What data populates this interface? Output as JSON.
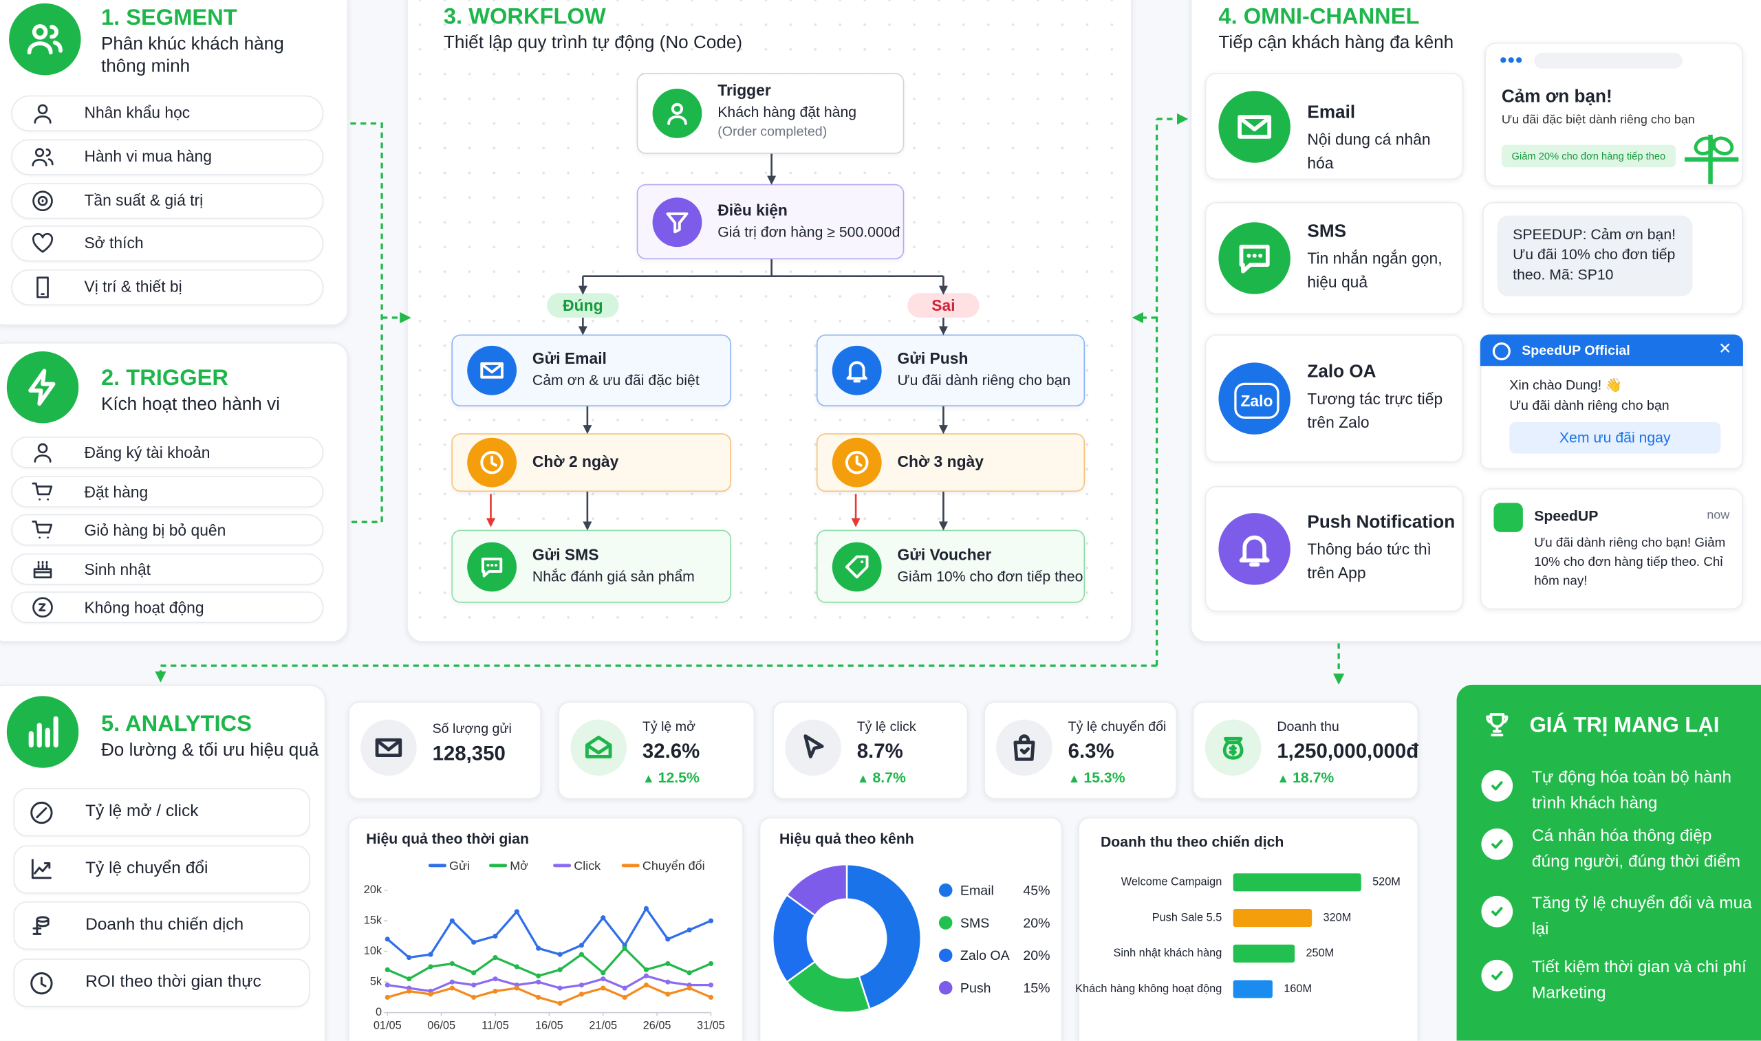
{
  "segment": {
    "heading": "1. SEGMENT",
    "title": "Phân khúc khách hàng thông minh",
    "items": [
      "Nhân khẩu học",
      "Hành vi mua hàng",
      "Tần suất & giá trị",
      "Sở thích",
      "Vị trí & thiết bị"
    ]
  },
  "trigger": {
    "heading": "2. TRIGGER",
    "title": "Kích hoạt theo hành vi",
    "items": [
      "Đăng ký tài khoản",
      "Đặt hàng",
      "Giỏ hàng bị bỏ quên",
      "Sinh nhật",
      "Không hoạt động"
    ]
  },
  "workflow": {
    "heading": "3. WORKFLOW",
    "subtitle": "Thiết lập quy trình tự động (No Code)",
    "trigger": {
      "title": "Trigger",
      "text": "Khách hàng đặt hàng",
      "note": "(Order completed)"
    },
    "condition": {
      "title": "Điều kiện",
      "text": "Giá trị đơn hàng ≥ 500.000đ"
    },
    "branches": [
      {
        "label": "Đúng",
        "steps": [
          {
            "title": "Gửi Email",
            "text": "Cảm ơn & ưu đãi đặc biệt"
          },
          {
            "title": "Chờ 2 ngày"
          },
          {
            "title": "Gửi SMS",
            "text": "Nhắc đánh giá sản phẩm"
          }
        ]
      },
      {
        "label": "Sai",
        "steps": [
          {
            "title": "Gửi Push",
            "text": "Ưu đãi dành riêng cho bạn"
          },
          {
            "title": "Chờ 3 ngày"
          },
          {
            "title": "Gửi Voucher",
            "text": "Giảm 10% cho đơn tiếp theo"
          }
        ]
      }
    ]
  },
  "omni": {
    "heading": "4. OMNI-CHANNEL",
    "subtitle": "Tiếp cận khách hàng đa kênh",
    "channels": [
      {
        "title": "Email",
        "text": "Nội dung cá nhân hóa"
      },
      {
        "title": "SMS",
        "text": "Tin nhắn ngắn gọn, hiệu quả"
      },
      {
        "title": "Zalo OA",
        "text": "Tương tác trực tiếp trên Zalo",
        "icon": "Zalo"
      },
      {
        "title": "Push Notification",
        "text": "Thông báo tức thì trên App"
      }
    ],
    "email_preview": {
      "title": "Cảm ơn bạn!",
      "text": "Ưu đãi đặc biệt dành riêng cho bạn",
      "badge": "Giảm 20% cho đơn hàng tiếp theo"
    },
    "sms_preview": {
      "text": "SPEEDUP: Cảm ơn bạn! Ưu đãi 10% cho đơn tiếp theo. Mã: SP10"
    },
    "zalo_preview": {
      "sender": "SpeedUP Official",
      "greeting": "Xin chào Dung! 👋",
      "text": "Ưu đãi dành riêng cho bạn",
      "button": "Xem ưu đãi ngay"
    },
    "push_preview": {
      "sender": "SpeedUP",
      "time": "now",
      "text": "Ưu đãi dành riêng cho bạn! Giảm 10% cho đơn hàng tiếp theo. Chỉ hôm nay!"
    }
  },
  "analytics": {
    "heading": "5. ANALYTICS",
    "subtitle": "Đo lường & tối ưu hiệu quả",
    "items": [
      "Tỷ lệ mở / click",
      "Tỷ lệ chuyển đổi",
      "Doanh thu chiến dịch",
      "ROI theo thời gian thực"
    ]
  },
  "kpis": [
    {
      "label": "Số lượng gửi",
      "value": "128,350"
    },
    {
      "label": "Tỷ lệ mở",
      "value": "32.6%",
      "change": "12.5%"
    },
    {
      "label": "Tỷ lệ click",
      "value": "8.7%",
      "change": "8.7%"
    },
    {
      "label": "Tỷ lệ chuyển đổi",
      "value": "6.3%",
      "change": "15.3%"
    },
    {
      "label": "Doanh thu",
      "value": "1,250,000,000đ",
      "change": "18.7%"
    }
  ],
  "benefits": {
    "title": "GIÁ TRỊ MANG LẠI",
    "items": [
      "Tự động hóa toàn bộ hành trình khách hàng",
      "Cá nhân hóa thông điệp đúng người, đúng thời điểm",
      "Tăng tỷ lệ chuyển đổi và mua lại",
      "Tiết kiệm thời gian và chi phí Marketing"
    ]
  },
  "chart_data": [
    {
      "type": "line",
      "title": "Hiệu quả theo thời gian",
      "x": [
        1,
        3,
        5,
        7,
        9,
        11,
        13,
        15,
        17,
        19,
        21,
        23,
        25,
        27,
        29,
        31
      ],
      "xlim": [
        1,
        31
      ],
      "xticks": [
        {
          "value": 1,
          "label": "01/05"
        },
        {
          "value": 6,
          "label": "06/05"
        },
        {
          "value": 11,
          "label": "11/05"
        },
        {
          "value": 16,
          "label": "16/05"
        },
        {
          "value": 21,
          "label": "21/05"
        },
        {
          "value": 26,
          "label": "26/05"
        },
        {
          "value": 31,
          "label": "31/05"
        }
      ],
      "ylim": [
        0,
        20000
      ],
      "yticks": [
        0,
        {
          "value": 5000,
          "label": "5k"
        },
        {
          "value": 10000,
          "label": "10k"
        },
        {
          "value": 15000,
          "label": "15k"
        },
        {
          "value": 20000,
          "label": "20k"
        }
      ],
      "grid": false,
      "series": [
        {
          "name": "Gửi",
          "color": "#2f6fe8",
          "values": [
            12000,
            9000,
            9500,
            15000,
            11500,
            12500,
            16500,
            10500,
            9500,
            11000,
            15500,
            11000,
            17000,
            12000,
            13500,
            15000
          ]
        },
        {
          "name": "Mở",
          "color": "#22b84a",
          "values": [
            7000,
            5500,
            7500,
            8000,
            6500,
            9000,
            7500,
            6000,
            7000,
            9500,
            6500,
            10500,
            7000,
            8000,
            6500,
            8000
          ]
        },
        {
          "name": "Click",
          "color": "#8b6cf0",
          "values": [
            4500,
            4000,
            3500,
            5000,
            4500,
            5500,
            4500,
            5000,
            4000,
            4500,
            5500,
            4000,
            6000,
            5000,
            4500,
            4500
          ]
        },
        {
          "name": "Chuyển đổi",
          "color": "#f58a1f",
          "values": [
            2500,
            3500,
            3000,
            4000,
            2500,
            3500,
            4000,
            2500,
            1500,
            3000,
            4000,
            2500,
            4500,
            3000,
            4000,
            2500
          ]
        }
      ]
    },
    {
      "type": "pie",
      "title": "Hiệu quả theo kênh",
      "categories": [
        "Email",
        "SMS",
        "Zalo OA",
        "Push"
      ],
      "values": [
        45,
        20,
        20,
        15
      ],
      "value_labels": [
        "45%",
        "20%",
        "20%",
        "15%"
      ],
      "colors": [
        "#1a73e8",
        "#22c04e",
        "#1e6ef0",
        "#7c5ce8"
      ]
    },
    {
      "type": "barh",
      "title": "Doanh thu theo chiến dịch",
      "categories": [
        "Welcome Campaign",
        "Push Sale 5.5",
        "Sinh nhật khách hàng",
        "Khách hàng không hoạt động"
      ],
      "values": [
        520,
        320,
        250,
        160
      ],
      "value_labels": [
        "520M",
        "320M",
        "250M",
        "160M"
      ],
      "colors": [
        "#22c04e",
        "#f59e0b",
        "#22c04e",
        "#1a8cf0"
      ]
    }
  ]
}
